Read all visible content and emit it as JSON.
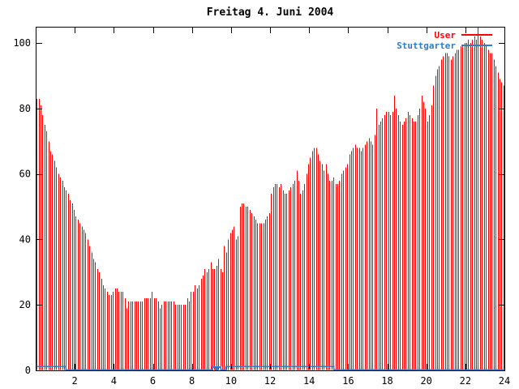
{
  "title": "Freitag 4. Juni 2004",
  "colors": {
    "user": "#ff0000",
    "stuttgarter": "#2b7cd3",
    "axis": "#000000",
    "background": "#ffffff"
  },
  "chart_data": {
    "type": "bar",
    "title": "Freitag 4. Juni 2004",
    "xlabel": "",
    "ylabel": "",
    "xlim": [
      0,
      24
    ],
    "ylim": [
      0,
      105
    ],
    "x_ticks": [
      2,
      4,
      6,
      8,
      10,
      12,
      14,
      16,
      18,
      20,
      22,
      24
    ],
    "y_ticks": [
      0,
      20,
      40,
      60,
      80,
      100
    ],
    "grid": false,
    "legend_position": "top-right",
    "series": [
      {
        "name": "User",
        "style": "impulses",
        "color": "#ff0000",
        "x_start": 0.05,
        "x_step": 0.1,
        "values": [
          83,
          83,
          81,
          78,
          75,
          73,
          70,
          67,
          66,
          64,
          62,
          60,
          59,
          58,
          56,
          55,
          54,
          52,
          51,
          49,
          47,
          46,
          45,
          44,
          43,
          42,
          40,
          38,
          36,
          34,
          33,
          31,
          30,
          28,
          26,
          25,
          24,
          23,
          23,
          24,
          25,
          25,
          24,
          24,
          24,
          22,
          19,
          21,
          21,
          21,
          21,
          21,
          21,
          21,
          21,
          22,
          22,
          22,
          22,
          24,
          22,
          22,
          21,
          19,
          20,
          21,
          21,
          21,
          21,
          21,
          21,
          20,
          20,
          20,
          20,
          20,
          20,
          22,
          21,
          24,
          24,
          26,
          25,
          26,
          28,
          29,
          31,
          30,
          31,
          33,
          31,
          31,
          32,
          34,
          31,
          30,
          38,
          36,
          40,
          42,
          43,
          44,
          40,
          41,
          50,
          51,
          51,
          50,
          50,
          49,
          48,
          47,
          46,
          45,
          45,
          45,
          45,
          46,
          47,
          48,
          54,
          56,
          57,
          57,
          56,
          57,
          55,
          54,
          54,
          55,
          56,
          57,
          58,
          61,
          58,
          54,
          55,
          57,
          60,
          63,
          65,
          67,
          68,
          68,
          66,
          64,
          63,
          61,
          63,
          60,
          58,
          58,
          59,
          57,
          57,
          58,
          60,
          61,
          62,
          63,
          66,
          67,
          68,
          69,
          68,
          68,
          67,
          68,
          69,
          70,
          71,
          70,
          69,
          72,
          80,
          75,
          76,
          77,
          78,
          79,
          79,
          78,
          79,
          84,
          80,
          78,
          76,
          75,
          76,
          77,
          79,
          78,
          77,
          76,
          76,
          78,
          80,
          84,
          82,
          80,
          76,
          78,
          81,
          87,
          90,
          92,
          93,
          95,
          96,
          97,
          97,
          96,
          95,
          96,
          97,
          98,
          98,
          99,
          99,
          100,
          100,
          101,
          100,
          101,
          102,
          101,
          105,
          102,
          101,
          100,
          99,
          98,
          97,
          97,
          95,
          93,
          91,
          89,
          88,
          87
        ]
      },
      {
        "name": "Stuttgarter",
        "style": "step-line",
        "color": "#2b7cd3",
        "segments": [
          [
            0.0,
            1.55,
            1.2
          ],
          [
            1.55,
            9.05,
            0.2
          ],
          [
            9.05,
            9.22,
            1.0
          ],
          [
            9.22,
            9.3,
            0.2
          ],
          [
            9.3,
            9.47,
            1.0
          ],
          [
            9.47,
            9.75,
            0.2
          ],
          [
            9.75,
            15.27,
            1.2
          ],
          [
            15.27,
            24.0,
            0.2
          ]
        ]
      }
    ]
  }
}
